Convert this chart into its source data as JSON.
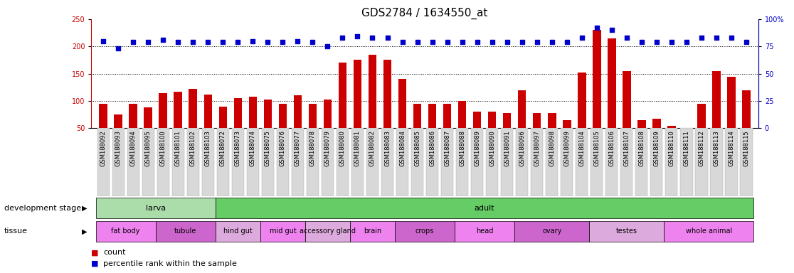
{
  "title": "GDS2784 / 1634550_at",
  "samples": [
    "GSM188092",
    "GSM188093",
    "GSM188094",
    "GSM188095",
    "GSM188100",
    "GSM188101",
    "GSM188102",
    "GSM188103",
    "GSM188072",
    "GSM188073",
    "GSM188074",
    "GSM188075",
    "GSM188076",
    "GSM188077",
    "GSM188078",
    "GSM188079",
    "GSM188080",
    "GSM188081",
    "GSM188082",
    "GSM188083",
    "GSM188084",
    "GSM188085",
    "GSM188086",
    "GSM188087",
    "GSM188088",
    "GSM188089",
    "GSM188090",
    "GSM188091",
    "GSM188096",
    "GSM188097",
    "GSM188098",
    "GSM188099",
    "GSM188104",
    "GSM188105",
    "GSM188106",
    "GSM188107",
    "GSM188108",
    "GSM188109",
    "GSM188110",
    "GSM188111",
    "GSM188112",
    "GSM188113",
    "GSM188114",
    "GSM188115"
  ],
  "counts": [
    95,
    75,
    95,
    88,
    115,
    117,
    122,
    112,
    90,
    105,
    108,
    103,
    95,
    110,
    95,
    103,
    170,
    175,
    185,
    175,
    140,
    95,
    95,
    95,
    100,
    80,
    80,
    78,
    120,
    78,
    78,
    65,
    152,
    230,
    215,
    155,
    65,
    68,
    55,
    50,
    95,
    155,
    145,
    120
  ],
  "percentiles": [
    80,
    73,
    79,
    79,
    81,
    79,
    79,
    79,
    79,
    79,
    80,
    79,
    79,
    80,
    79,
    75,
    83,
    84,
    83,
    83,
    79,
    79,
    79,
    79,
    79,
    79,
    79,
    79,
    79,
    79,
    79,
    79,
    83,
    92,
    90,
    83,
    79,
    79,
    79,
    79,
    83,
    83,
    83,
    79
  ],
  "dev_stage_groups": [
    {
      "label": "larva",
      "start": 0,
      "end": 8,
      "color": "#aaddaa"
    },
    {
      "label": "adult",
      "start": 8,
      "end": 44,
      "color": "#66cc66"
    }
  ],
  "tissue_groups": [
    {
      "label": "fat body",
      "start": 0,
      "end": 4,
      "color": "#ee82ee"
    },
    {
      "label": "tubule",
      "start": 4,
      "end": 8,
      "color": "#cc66cc"
    },
    {
      "label": "hind gut",
      "start": 8,
      "end": 11,
      "color": "#ddaadd"
    },
    {
      "label": "mid gut",
      "start": 11,
      "end": 14,
      "color": "#ee82ee"
    },
    {
      "label": "accessory gland",
      "start": 14,
      "end": 17,
      "color": "#ddaadd"
    },
    {
      "label": "brain",
      "start": 17,
      "end": 20,
      "color": "#ee82ee"
    },
    {
      "label": "crops",
      "start": 20,
      "end": 24,
      "color": "#cc66cc"
    },
    {
      "label": "head",
      "start": 24,
      "end": 28,
      "color": "#ee82ee"
    },
    {
      "label": "ovary",
      "start": 28,
      "end": 33,
      "color": "#cc66cc"
    },
    {
      "label": "testes",
      "start": 33,
      "end": 38,
      "color": "#ddaadd"
    },
    {
      "label": "whole animal",
      "start": 38,
      "end": 44,
      "color": "#ee82ee"
    }
  ],
  "bar_color": "#cc0000",
  "scatter_color": "#0000cc",
  "left_ylim": [
    50,
    250
  ],
  "left_yticks": [
    50,
    100,
    150,
    200,
    250
  ],
  "right_ylim": [
    0,
    100
  ],
  "right_yticks": [
    0,
    25,
    50,
    75,
    100
  ],
  "hline_values": [
    100,
    150,
    200
  ],
  "title_fontsize": 11,
  "label_fontsize": 8,
  "tick_fontsize": 7,
  "sample_fontsize": 6
}
